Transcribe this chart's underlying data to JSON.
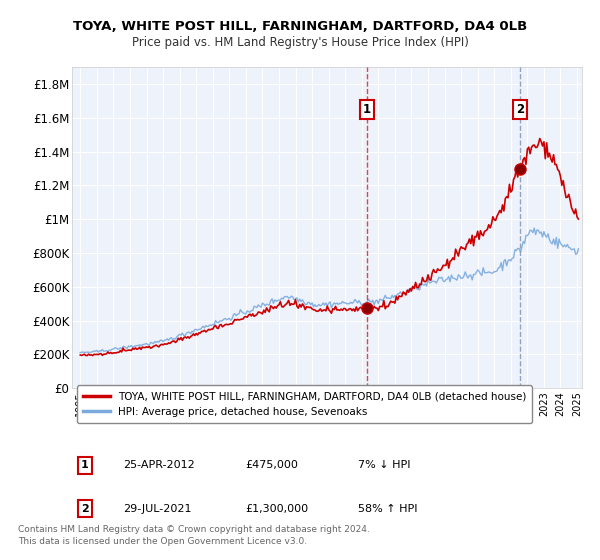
{
  "title": "TOYA, WHITE POST HILL, FARNINGHAM, DARTFORD, DA4 0LB",
  "subtitle": "Price paid vs. HM Land Registry's House Price Index (HPI)",
  "background_color": "#ffffff",
  "plot_bg_color": "#eef2fb",
  "grid_color": "#ffffff",
  "ylim": [
    0,
    1900000
  ],
  "yticks": [
    0,
    200000,
    400000,
    600000,
    800000,
    1000000,
    1200000,
    1400000,
    1600000,
    1800000
  ],
  "ytick_labels": [
    "£0",
    "£200K",
    "£400K",
    "£600K",
    "£800K",
    "£1M",
    "£1.2M",
    "£1.4M",
    "£1.6M",
    "£1.8M"
  ],
  "sale_dates": [
    2012.32,
    2021.58
  ],
  "sale_prices": [
    475000,
    1300000
  ],
  "sale_labels": [
    "1",
    "2"
  ],
  "sale_info": [
    {
      "label": "1",
      "date": "25-APR-2012",
      "price": "£475,000",
      "pct": "7% ↓ HPI"
    },
    {
      "label": "2",
      "date": "29-JUL-2021",
      "price": "£1,300,000",
      "pct": "58% ↑ HPI"
    }
  ],
  "line_property_color": "#cc0000",
  "line_hpi_color": "#7aaadd",
  "vline1_color": "#dd3333",
  "vline2_color": "#8899bb",
  "legend_label_property": "TOYA, WHITE POST HILL, FARNINGHAM, DARTFORD, DA4 0LB (detached house)",
  "legend_label_hpi": "HPI: Average price, detached house, Sevenoaks",
  "footnote": "Contains HM Land Registry data © Crown copyright and database right 2024.\nThis data is licensed under the Open Government Licence v3.0."
}
